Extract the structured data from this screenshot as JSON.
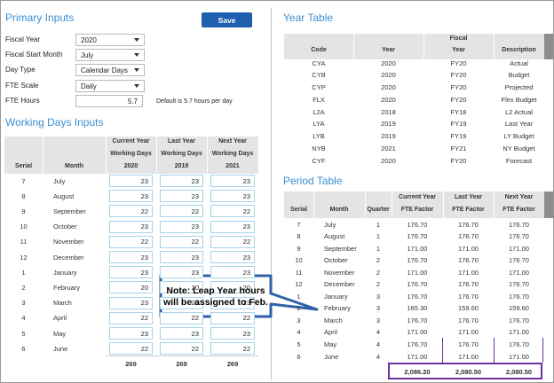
{
  "primary_inputs": {
    "title": "Primary Inputs",
    "save_button": "Save",
    "fields": [
      {
        "label": "Fiscal Year",
        "value": "2020"
      },
      {
        "label": "Fiscal Start Month",
        "value": "July"
      },
      {
        "label": "Day Type",
        "value": "Calendar Days"
      },
      {
        "label": "FTE Scale",
        "value": "Daily"
      }
    ],
    "fte_hours": {
      "label": "FTE Hours",
      "value": "5.7",
      "note": "Default is 5.7 hours per day"
    }
  },
  "working_days": {
    "title": "Working Days Inputs",
    "columns": [
      [
        "Serial"
      ],
      [
        "Month"
      ],
      [
        "Current Year",
        "Working Days",
        "2020"
      ],
      [
        "Last Year",
        "Working Days",
        "2019"
      ],
      [
        "Next Year",
        "Working Days",
        "2021"
      ]
    ],
    "rows": [
      [
        "7",
        "July",
        "23",
        "23",
        "23"
      ],
      [
        "8",
        "August",
        "23",
        "23",
        "23"
      ],
      [
        "9",
        "September",
        "22",
        "22",
        "22"
      ],
      [
        "10",
        "October",
        "23",
        "23",
        "23"
      ],
      [
        "11",
        "November",
        "22",
        "22",
        "22"
      ],
      [
        "12",
        "December",
        "23",
        "23",
        "23"
      ],
      [
        "1",
        "January",
        "23",
        "23",
        "23"
      ],
      [
        "2",
        "February",
        "20",
        "20",
        "20"
      ],
      [
        "3",
        "March",
        "23",
        "23",
        "23"
      ],
      [
        "4",
        "April",
        "22",
        "22",
        "22"
      ],
      [
        "5",
        "May",
        "23",
        "23",
        "23"
      ],
      [
        "6",
        "June",
        "22",
        "22",
        "22"
      ]
    ],
    "totals": [
      "269",
      "269",
      "269"
    ]
  },
  "year_table": {
    "title": "Year Table",
    "columns": [
      [
        "Code"
      ],
      [
        "Year"
      ],
      [
        "Fiscal",
        "Year"
      ],
      [
        "Description"
      ]
    ],
    "rows": [
      [
        "CYA",
        "2020",
        "FY20",
        "Actual"
      ],
      [
        "CYB",
        "2020",
        "FY20",
        "Budget"
      ],
      [
        "CYP",
        "2020",
        "FY20",
        "Projected"
      ],
      [
        "FLX",
        "2020",
        "FY20",
        "Flex Budget"
      ],
      [
        "L2A",
        "2018",
        "FY18",
        "L2 Actual"
      ],
      [
        "LYA",
        "2019",
        "FY19",
        "Last Year"
      ],
      [
        "LYB",
        "2019",
        "FY19",
        "LY Budget"
      ],
      [
        "NYB",
        "2021",
        "FY21",
        "NY Budget"
      ],
      [
        "CYF",
        "2020",
        "FY20",
        "Forecast"
      ]
    ]
  },
  "period_table": {
    "title": "Period Table",
    "columns": [
      [
        "Serial"
      ],
      [
        "Month"
      ],
      [
        "Quarter"
      ],
      [
        "Current Year",
        "FTE Factor"
      ],
      [
        "Last Year",
        "FTE Factor"
      ],
      [
        "Next Year",
        "FTE Factor"
      ]
    ],
    "rows": [
      [
        "7",
        "July",
        "1",
        "176.70",
        "176.70",
        "176.70"
      ],
      [
        "8",
        "August",
        "1",
        "176.70",
        "176.70",
        "176.70"
      ],
      [
        "9",
        "September",
        "1",
        "171.00",
        "171.00",
        "171.00"
      ],
      [
        "10",
        "October",
        "2",
        "176.70",
        "176.70",
        "176.70"
      ],
      [
        "11",
        "November",
        "2",
        "171.00",
        "171.00",
        "171.00"
      ],
      [
        "12",
        "December",
        "2",
        "176.70",
        "176.70",
        "176.70"
      ],
      [
        "1",
        "January",
        "3",
        "176.70",
        "176.70",
        "176.70"
      ],
      [
        "2",
        "February",
        "3",
        "165.30",
        "159.60",
        "159.60"
      ],
      [
        "3",
        "March",
        "3",
        "176.70",
        "176.70",
        "176.70"
      ],
      [
        "4",
        "April",
        "4",
        "171.00",
        "171.00",
        "171.00"
      ],
      [
        "5",
        "May",
        "4",
        "176.70",
        "176.70",
        "176.70"
      ],
      [
        "6",
        "June",
        "4",
        "171.00",
        "171.00",
        "171.00"
      ]
    ],
    "totals": [
      "2,086.20",
      "2,080.50",
      "2,080.50"
    ]
  },
  "callout": {
    "text": "Note: Leap Year hours will be assigned to Feb."
  }
}
